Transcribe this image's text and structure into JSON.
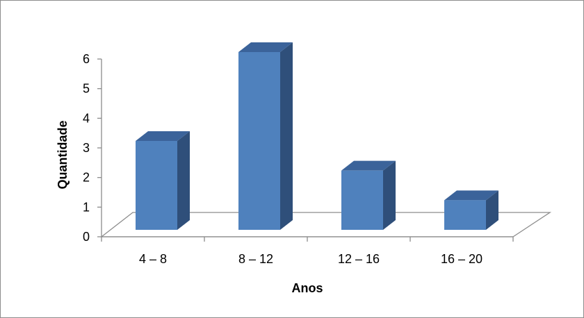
{
  "chart_data": {
    "type": "bar",
    "style": "3d-column",
    "categories": [
      "4 – 8",
      "8 – 12",
      "12 – 16",
      "16 – 20"
    ],
    "values": [
      3,
      6,
      2,
      1
    ],
    "title": "",
    "xlabel": "Anos",
    "ylabel": "Quantidade",
    "ylim": [
      0,
      6
    ],
    "yticks": [
      0,
      1,
      2,
      3,
      4,
      5,
      6
    ],
    "grid": false,
    "legend": "none",
    "colors": {
      "bar_front": "#4f81bd",
      "bar_side": "#2f4f7a",
      "bar_top": "#3b639a",
      "axis": "#8c8c8c",
      "frame": "#8c8c8c"
    }
  }
}
